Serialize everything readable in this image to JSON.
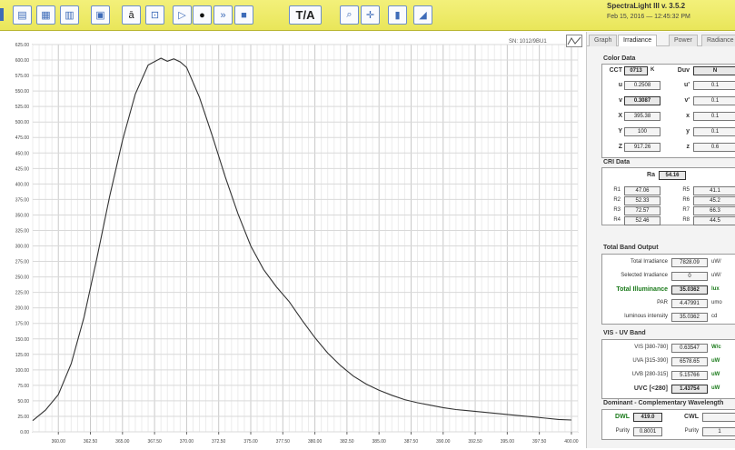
{
  "app": {
    "title": "SpectraLight III v. 3.5.2",
    "date": "Feb 15, 2016 — 12:45:32 PM",
    "ta_label": "T/A"
  },
  "toolbar_icons": [
    "table-icon",
    "grid-icon",
    "calendar-icon",
    "list-icon",
    "text-a-icon",
    "crop-icon",
    "play-icon",
    "record-icon",
    "forward-icon",
    "stop-icon",
    "zoom-icon",
    "crosshair-icon",
    "bar-chart-icon",
    "area-chart-icon"
  ],
  "tabs": [
    "Graph",
    "Irradiance",
    "Power",
    "Radiance"
  ],
  "chart": {
    "series_name": "SN: 1012/9BU1"
  },
  "chart_data": {
    "type": "line",
    "y_ticks": [
      "0.00",
      "25.00",
      "50.00",
      "75.00",
      "100.00",
      "125.00",
      "150.00",
      "175.00",
      "200.00",
      "225.00",
      "250.00",
      "275.00",
      "300.00",
      "325.00",
      "350.00",
      "375.00",
      "400.00",
      "425.00",
      "450.00",
      "475.00",
      "500.00",
      "525.00",
      "550.00",
      "575.00",
      "600.00",
      "625.00"
    ],
    "x_ticks": [
      "360.00",
      "362.50",
      "365.00",
      "367.50",
      "370.00",
      "372.50",
      "375.00",
      "377.50",
      "380.00",
      "382.50",
      "385.00",
      "387.50",
      "390.00",
      "392.50",
      "395.00",
      "397.50",
      "400.00"
    ],
    "ylim": [
      0,
      625
    ],
    "xlim": [
      358,
      400.5
    ],
    "grid": true,
    "x": [
      358.0,
      359.0,
      360.0,
      361.0,
      362.0,
      363.0,
      364.0,
      365.0,
      366.0,
      367.0,
      368.0,
      368.5,
      369.0,
      369.5,
      370.0,
      371.0,
      372.0,
      373.0,
      374.0,
      375.0,
      376.0,
      377.0,
      378.0,
      379.0,
      380.0,
      381.0,
      382.0,
      383.0,
      384.0,
      385.0,
      386.0,
      387.0,
      388.0,
      389.0,
      390.0,
      391.0,
      392.0,
      393.0,
      394.0,
      395.0,
      396.0,
      397.0,
      398.0,
      399.0,
      400.0
    ],
    "y": [
      18,
      35,
      60,
      110,
      185,
      280,
      380,
      470,
      545,
      592,
      603,
      598,
      602,
      597,
      588,
      540,
      478,
      412,
      352,
      300,
      262,
      234,
      210,
      180,
      152,
      127,
      107,
      90,
      77,
      67,
      59,
      52,
      47,
      43,
      39,
      36,
      34,
      32,
      30,
      28,
      26,
      24,
      22,
      20,
      19
    ]
  },
  "panel": {
    "color_data": {
      "title": "Color Data",
      "cct_label": "CCT",
      "cct_value": "0713",
      "cct_unit": "K",
      "duv_label": "Duv",
      "duv_value": "N",
      "left_rows": [
        {
          "label": "u",
          "value": "0.2508"
        },
        {
          "label": "v",
          "value": "0.3087"
        },
        {
          "label": "X",
          "value": "395.38"
        },
        {
          "label": "Y",
          "value": "100"
        },
        {
          "label": "Z",
          "value": "917.26"
        }
      ],
      "right_rows": [
        {
          "label": "u'",
          "value": "0.1"
        },
        {
          "label": "v'",
          "value": "0.1"
        },
        {
          "label": "x",
          "value": "0.1"
        },
        {
          "label": "y",
          "value": "0.1"
        },
        {
          "label": "z",
          "value": "0.6"
        }
      ]
    },
    "cri_data": {
      "title": "CRI Data",
      "ra_label": "Ra",
      "ra_value": "54.16",
      "left_rows": [
        {
          "label": "R1",
          "value": "47.06"
        },
        {
          "label": "R2",
          "value": "52.33"
        },
        {
          "label": "R3",
          "value": "72.57"
        },
        {
          "label": "R4",
          "value": "52.46"
        }
      ],
      "right_rows": [
        {
          "label": "R5",
          "value": "41.1"
        },
        {
          "label": "R6",
          "value": "45.2"
        },
        {
          "label": "R7",
          "value": "66.3"
        },
        {
          "label": "R8",
          "value": "44.5"
        }
      ]
    },
    "total_band": {
      "title": "Total Band Output",
      "rows": [
        {
          "label": "Total Irradiance",
          "value": "7828.09",
          "unit": "uW/",
          "strong": false
        },
        {
          "label": "Selected Irradiance",
          "value": "0",
          "unit": "uW/",
          "strong": false
        },
        {
          "label": "Total Illuminance",
          "value": "35.0362",
          "unit": "lux",
          "strong": true
        },
        {
          "label": "PAR",
          "value": "4.47991",
          "unit": "umo",
          "strong": false
        },
        {
          "label": "luminous intensity",
          "value": "35.0362",
          "unit": "cd",
          "strong": false
        }
      ]
    },
    "uv_band": {
      "title": "VIS - UV Band",
      "rows": [
        {
          "label": "VIS [380-780]",
          "value": "0.63547",
          "unit": "W/c",
          "strong": false
        },
        {
          "label": "UVA [315-390]",
          "value": "6578.65",
          "unit": "uW",
          "strong": false
        },
        {
          "label": "UVB [280-315]",
          "value": "5.15766",
          "unit": "uW",
          "strong": false
        },
        {
          "label": "UVC [<280]",
          "value": "1.43754",
          "unit": "uW",
          "strong": true
        }
      ]
    },
    "dominant": {
      "title": "Dominant - Complementary Wavelength",
      "dwl_label": "DWL",
      "dwl_value": "419.0",
      "cwl_label": "CWL",
      "cwl_value": "",
      "purity_label": "Purity",
      "purity_value": "0.8001",
      "purity2_label": "Purity",
      "purity2_value": "1"
    }
  }
}
